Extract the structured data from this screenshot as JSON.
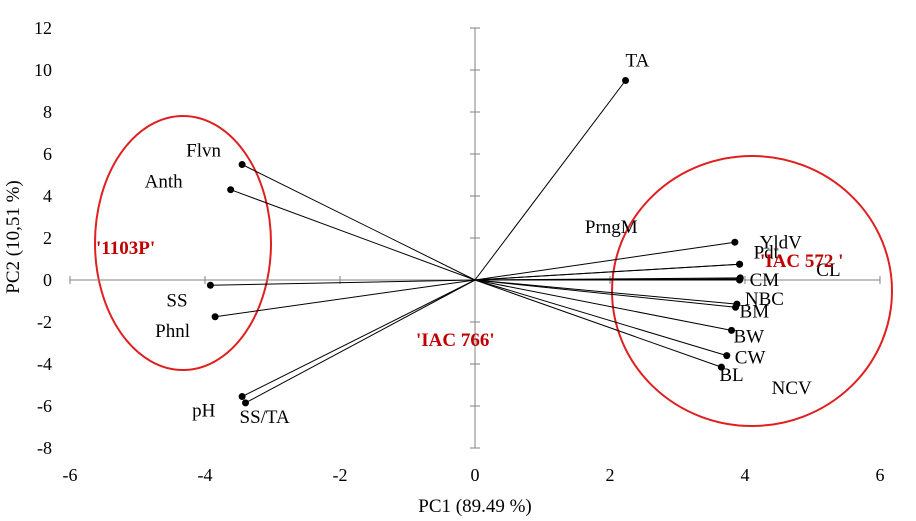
{
  "chart_data": {
    "type": "scatter",
    "subtype": "pca-biplot",
    "xlabel": "PC1 (89.49 %)",
    "ylabel": "PC2 (10,51 %)",
    "xlim": [
      -6,
      6
    ],
    "ylim": [
      -8,
      12
    ],
    "x_ticks": [
      -6,
      -4,
      -2,
      0,
      2,
      4,
      6
    ],
    "y_ticks": [
      -8,
      -6,
      -4,
      -2,
      0,
      2,
      4,
      6,
      8,
      10,
      12
    ],
    "grid": false,
    "legend": "none",
    "series": [
      {
        "points": [
          {
            "label": "TA",
            "x": 2.23,
            "y": 9.5
          },
          {
            "label": "YldV",
            "x": 3.92,
            "y": 0.75
          },
          {
            "label": "Pdt",
            "x": 3.92,
            "y": 0.75
          },
          {
            "label": "CL",
            "x": 3.93,
            "y": 0.1
          },
          {
            "label": "PrngM",
            "x": 3.85,
            "y": 1.8
          },
          {
            "label": "CM",
            "x": 3.92,
            "y": 0.0
          },
          {
            "label": "NBC",
            "x": 3.88,
            "y": -1.15
          },
          {
            "label": "BM",
            "x": 3.86,
            "y": -1.3
          },
          {
            "label": "BW",
            "x": 3.8,
            "y": -2.4
          },
          {
            "label": "CW",
            "x": 3.73,
            "y": -3.6
          },
          {
            "label": "BL",
            "x": 3.65,
            "y": -4.15
          },
          {
            "label": "NCV",
            "x": 3.92,
            "y": 0.05
          },
          {
            "label": "Flvn",
            "x": -3.45,
            "y": 5.5
          },
          {
            "label": "Anth",
            "x": -3.62,
            "y": 4.3
          },
          {
            "label": "SS",
            "x": -3.92,
            "y": -0.25
          },
          {
            "label": "Phnl",
            "x": -3.85,
            "y": -1.75
          },
          {
            "label": "pH",
            "x": -3.45,
            "y": -5.55
          },
          {
            "label": "SS/TA",
            "x": -3.4,
            "y": -5.85
          }
        ]
      }
    ],
    "groups": [
      {
        "label": "'1103P'",
        "color": "#c00000"
      },
      {
        "label": "'IAC 572 '",
        "color": "#c00000"
      },
      {
        "label": "'IAC 766'",
        "color": "#c00000"
      }
    ],
    "circle_color": "#e02020",
    "vector_color": "#000000"
  }
}
